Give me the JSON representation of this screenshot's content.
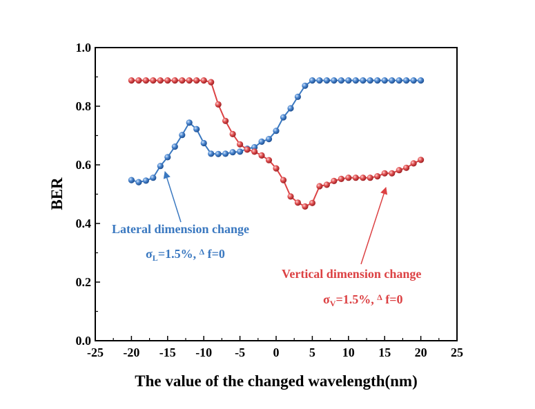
{
  "chart_data": {
    "type": "line",
    "xlabel": "The value of the changed wavelength(nm)",
    "ylabel": "BER",
    "xlim": [
      -25,
      25
    ],
    "ylim": [
      0.0,
      1.0
    ],
    "xticks": [
      "-25",
      "-20",
      "-15",
      "-10",
      "-5",
      "0",
      "5",
      "10",
      "15",
      "20",
      "25"
    ],
    "yticks": [
      "0.0",
      "0.2",
      "0.4",
      "0.6",
      "0.8",
      "1.0"
    ],
    "grid": false,
    "x": [
      -20,
      -19,
      -18,
      -17,
      -16,
      -15,
      -14,
      -13,
      -12,
      -11,
      -10,
      -9,
      -8,
      -7,
      -6,
      -5,
      -4,
      -3,
      -2,
      -1,
      0,
      1,
      2,
      3,
      4,
      5,
      6,
      7,
      8,
      9,
      10,
      11,
      12,
      13,
      14,
      15,
      16,
      17,
      18,
      19,
      20
    ],
    "series": [
      {
        "color": "#3a78c0",
        "values": [
          0.548,
          0.541,
          0.546,
          0.556,
          0.596,
          0.626,
          0.662,
          0.702,
          0.744,
          0.722,
          0.674,
          0.638,
          0.637,
          0.638,
          0.643,
          0.645,
          0.655,
          0.66,
          0.679,
          0.688,
          0.716,
          0.762,
          0.793,
          0.832,
          0.87,
          0.888,
          0.888,
          0.888,
          0.888,
          0.888,
          0.888,
          0.888,
          0.888,
          0.888,
          0.888,
          0.888,
          0.888,
          0.888,
          0.888,
          0.888,
          0.888
        ]
      },
      {
        "color": "#dc4143",
        "values": [
          0.888,
          0.888,
          0.888,
          0.888,
          0.888,
          0.888,
          0.888,
          0.888,
          0.888,
          0.888,
          0.888,
          0.882,
          0.806,
          0.75,
          0.705,
          0.67,
          0.652,
          0.645,
          0.632,
          0.616,
          0.588,
          0.548,
          0.492,
          0.471,
          0.458,
          0.47,
          0.527,
          0.532,
          0.545,
          0.552,
          0.556,
          0.556,
          0.556,
          0.556,
          0.561,
          0.571,
          0.571,
          0.582,
          0.59,
          0.605,
          0.617
        ]
      }
    ],
    "annotations": [
      {
        "color": "#3a78c0",
        "line1": "Lateral dimension change",
        "sigma": "σ",
        "subscript": "L",
        "rest": "=1.5%, ",
        "delta": "Δ",
        "tail": " f=0"
      },
      {
        "color": "#dc4143",
        "line1": "Vertical dimension change",
        "sigma": "σ",
        "subscript": "V",
        "rest": "=1.5%, ",
        "delta": "Δ",
        "tail": " f=0"
      }
    ]
  }
}
